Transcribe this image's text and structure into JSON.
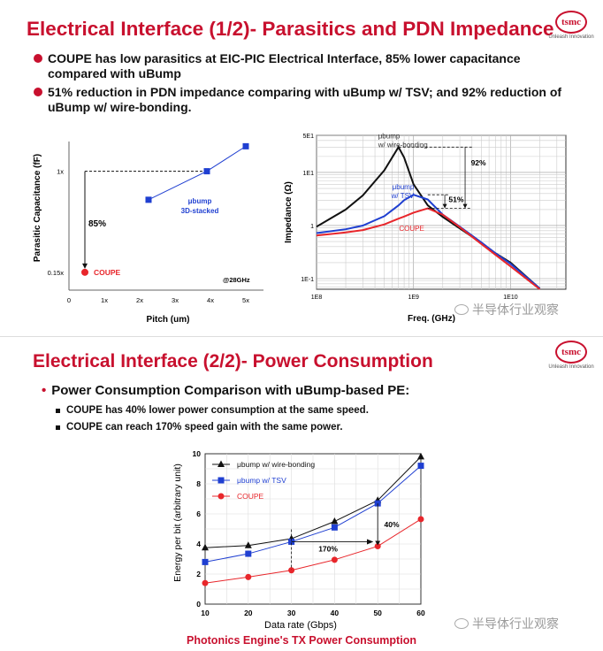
{
  "slide1": {
    "title": "Electrical Interface (1/2)- Parasitics and PDN Impedance",
    "logo": {
      "mark": "tsmc",
      "tagline": "Unleash Innovation"
    },
    "bullets": [
      "COUPE has low parasitics at EIC-PIC Electrical Interface, 85% lower capacitance compared with uBump",
      "51% reduction in PDN impedance comparing with uBump w/ TSV; and 92% reduction of uBump w/ wire-bonding."
    ],
    "watermark": "半导体行业观察"
  },
  "slide2": {
    "title": "Electrical Interface (2/2)- Power Consumption",
    "logo": {
      "mark": "tsmc",
      "tagline": "Unleash Innovation"
    },
    "main_bullet": "Power Consumption Comparison with uBump-based PE:",
    "sub_bullets": [
      "COUPE has 40% lower power consumption at the same speed.",
      "COUPE can reach 170% speed gain with the same power."
    ],
    "caption": "Photonics Engine's TX Power Consumption",
    "watermark": "半导体行业观察"
  },
  "chart_data": [
    {
      "type": "scatter",
      "title": "",
      "xlabel": "Pitch (um)",
      "ylabel": "Parasitic Capacitance (fF)",
      "xticks": [
        "0",
        "1x",
        "2x",
        "3x",
        "4x",
        "5x"
      ],
      "yticks": [
        "0.15x",
        "1x"
      ],
      "xlim": [
        0,
        5.5
      ],
      "ylim": [
        0,
        1.25
      ],
      "series": [
        {
          "name": "μbump 3D-stacked",
          "label": "μbump\n3D-stacked",
          "color": "#1f3fd1",
          "x": [
            2.25,
            3.9,
            5.0
          ],
          "y": [
            0.76,
            1.0,
            1.21
          ]
        },
        {
          "name": "COUPE",
          "label": "COUPE",
          "color": "#e8262b",
          "x": [
            0.45
          ],
          "y": [
            0.15
          ]
        }
      ],
      "annotations": [
        {
          "text": "85%"
        },
        {
          "text": "@28GHz"
        }
      ]
    },
    {
      "type": "line",
      "title": "",
      "xlabel": "Freq. (GHz)",
      "ylabel": "Impedance (Ω)",
      "xscale": "log",
      "yscale": "log",
      "xticks": [
        "1E8",
        "1E9",
        "1E10"
      ],
      "yticks": [
        "5E1",
        "1E1",
        "1",
        "1E-1"
      ],
      "x": [
        100000000,
        200000000,
        300000000,
        500000000,
        700000000,
        800000000,
        1000000000,
        1400000000,
        2000000000,
        3000000000,
        5000000000,
        7000000000,
        10000000000,
        20000000000
      ],
      "series": [
        {
          "name": "μbump w/ wire-bonding",
          "label": "μbump\nw/ wire-bonding",
          "color": "#111111",
          "values": [
            0.95,
            2.0,
            3.7,
            11.0,
            30.0,
            19.0,
            6.0,
            2.4,
            1.45,
            0.88,
            0.47,
            0.3,
            0.2,
            0.065
          ]
        },
        {
          "name": "μbump w/ TSV",
          "label": "μbump\nw/ TSV",
          "color": "#1f3fd1",
          "values": [
            0.72,
            0.85,
            1.0,
            1.5,
            2.4,
            3.0,
            3.8,
            3.1,
            1.6,
            0.95,
            0.48,
            0.3,
            0.19,
            0.065
          ]
        },
        {
          "name": "COUPE",
          "label": "COUPE",
          "color": "#e8262b",
          "values": [
            0.65,
            0.74,
            0.82,
            1.05,
            1.35,
            1.48,
            1.75,
            2.1,
            1.6,
            0.93,
            0.45,
            0.28,
            0.17,
            0.063
          ]
        }
      ],
      "annotations": [
        {
          "text": "92%"
        },
        {
          "text": "51%"
        }
      ]
    },
    {
      "type": "line",
      "title": "",
      "xlabel": "Data rate (Gbps)",
      "ylabel": "Energy per bit (arbitrary unit)",
      "xlim": [
        10,
        60
      ],
      "ylim": [
        0,
        10
      ],
      "x": [
        10,
        20,
        30,
        40,
        50,
        60
      ],
      "yticks": [
        "0",
        "2",
        "4",
        "6",
        "8",
        "10"
      ],
      "xticks": [
        "10",
        "20",
        "30",
        "40",
        "50",
        "60"
      ],
      "series": [
        {
          "name": "μbump w/ wire-bonding",
          "label": "μbump w/ wire-bonding",
          "color": "#111111",
          "marker": "triangle",
          "values": [
            3.75,
            3.9,
            4.35,
            5.5,
            6.9,
            9.8
          ]
        },
        {
          "name": "μbump w/ TSV",
          "label": "μbump w/ TSV",
          "color": "#1f3fd1",
          "marker": "square",
          "values": [
            2.8,
            3.35,
            4.15,
            5.1,
            6.7,
            9.2
          ]
        },
        {
          "name": "COUPE",
          "label": "COUPE",
          "color": "#e8262b",
          "marker": "circle",
          "values": [
            1.4,
            1.8,
            2.25,
            2.95,
            3.85,
            5.65
          ]
        }
      ],
      "legend": "top-left",
      "annotations": [
        {
          "text": "40%"
        },
        {
          "text": "170%"
        }
      ]
    }
  ]
}
